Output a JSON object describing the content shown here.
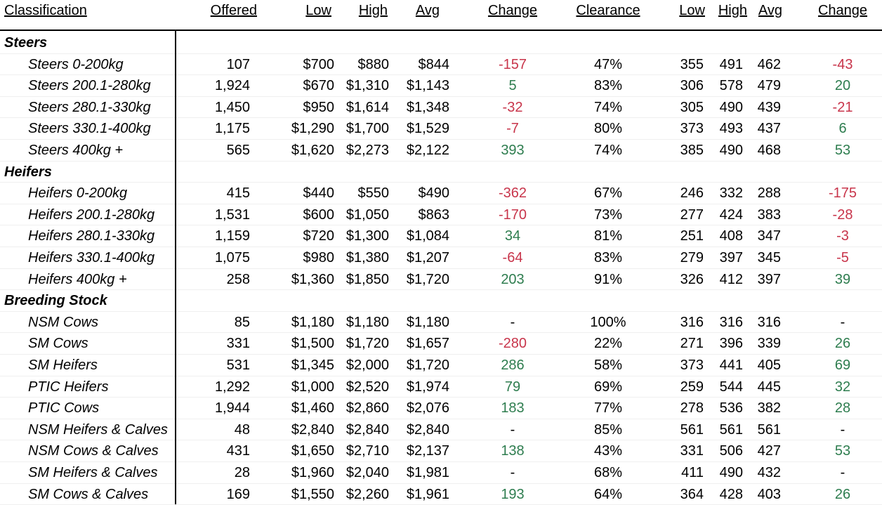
{
  "headers": {
    "classification": "Classification",
    "offered": "Offered",
    "low": "Low",
    "high": "High",
    "avg": "Avg",
    "change": "Change",
    "clearance": "Clearance",
    "low2": "Low",
    "high2": "High",
    "avg2": "Avg",
    "change2": "Change"
  },
  "colors": {
    "positive": "#2e7d4f",
    "negative": "#c8354b"
  },
  "rows": [
    {
      "type": "section",
      "label": "Steers"
    },
    {
      "type": "data",
      "label": "Steers 0-200kg",
      "offered": "107",
      "low": "$700",
      "high": "$880",
      "avg": "$844",
      "change": "-157",
      "clearance": "47%",
      "low2": "355",
      "high2": "491",
      "avg2": "462",
      "change2": "-43"
    },
    {
      "type": "data",
      "label": "Steers 200.1-280kg",
      "offered": "1,924",
      "low": "$670",
      "high": "$1,310",
      "avg": "$1,143",
      "change": "5",
      "clearance": "83%",
      "low2": "306",
      "high2": "578",
      "avg2": "479",
      "change2": "20"
    },
    {
      "type": "data",
      "label": "Steers 280.1-330kg",
      "offered": "1,450",
      "low": "$950",
      "high": "$1,614",
      "avg": "$1,348",
      "change": "-32",
      "clearance": "74%",
      "low2": "305",
      "high2": "490",
      "avg2": "439",
      "change2": "-21"
    },
    {
      "type": "data",
      "label": "Steers 330.1-400kg",
      "offered": "1,175",
      "low": "$1,290",
      "high": "$1,700",
      "avg": "$1,529",
      "change": "-7",
      "clearance": "80%",
      "low2": "373",
      "high2": "493",
      "avg2": "437",
      "change2": "6"
    },
    {
      "type": "data",
      "label": "Steers 400kg +",
      "offered": "565",
      "low": "$1,620",
      "high": "$2,273",
      "avg": "$2,122",
      "change": "393",
      "clearance": "74%",
      "low2": "385",
      "high2": "490",
      "avg2": "468",
      "change2": "53"
    },
    {
      "type": "section",
      "label": "Heifers"
    },
    {
      "type": "data",
      "label": "Heifers 0-200kg",
      "offered": "415",
      "low": "$440",
      "high": "$550",
      "avg": "$490",
      "change": "-362",
      "clearance": "67%",
      "low2": "246",
      "high2": "332",
      "avg2": "288",
      "change2": "-175"
    },
    {
      "type": "data",
      "label": "Heifers 200.1-280kg",
      "offered": "1,531",
      "low": "$600",
      "high": "$1,050",
      "avg": "$863",
      "change": "-170",
      "clearance": "73%",
      "low2": "277",
      "high2": "424",
      "avg2": "383",
      "change2": "-28"
    },
    {
      "type": "data",
      "label": "Heifers 280.1-330kg",
      "offered": "1,159",
      "low": "$720",
      "high": "$1,300",
      "avg": "$1,084",
      "change": "34",
      "clearance": "81%",
      "low2": "251",
      "high2": "408",
      "avg2": "347",
      "change2": "-3"
    },
    {
      "type": "data",
      "label": "Heifers 330.1-400kg",
      "offered": "1,075",
      "low": "$980",
      "high": "$1,380",
      "avg": "$1,207",
      "change": "-64",
      "clearance": "83%",
      "low2": "279",
      "high2": "397",
      "avg2": "345",
      "change2": "-5"
    },
    {
      "type": "data",
      "label": "Heifers 400kg +",
      "offered": "258",
      "low": "$1,360",
      "high": "$1,850",
      "avg": "$1,720",
      "change": "203",
      "clearance": "91%",
      "low2": "326",
      "high2": "412",
      "avg2": "397",
      "change2": "39"
    },
    {
      "type": "section",
      "label": "Breeding Stock"
    },
    {
      "type": "data",
      "label": "NSM Cows",
      "offered": "85",
      "low": "$1,180",
      "high": "$1,180",
      "avg": "$1,180",
      "change": "-",
      "clearance": "100%",
      "low2": "316",
      "high2": "316",
      "avg2": "316",
      "change2": "-"
    },
    {
      "type": "data",
      "label": "SM Cows",
      "offered": "331",
      "low": "$1,500",
      "high": "$1,720",
      "avg": "$1,657",
      "change": "-280",
      "clearance": "22%",
      "low2": "271",
      "high2": "396",
      "avg2": "339",
      "change2": "26"
    },
    {
      "type": "data",
      "label": "SM Heifers",
      "offered": "531",
      "low": "$1,345",
      "high": "$2,000",
      "avg": "$1,720",
      "change": "286",
      "clearance": "58%",
      "low2": "373",
      "high2": "441",
      "avg2": "405",
      "change2": "69"
    },
    {
      "type": "data",
      "label": "PTIC Heifers",
      "offered": "1,292",
      "low": "$1,000",
      "high": "$2,520",
      "avg": "$1,974",
      "change": "79",
      "clearance": "69%",
      "low2": "259",
      "high2": "544",
      "avg2": "445",
      "change2": "32"
    },
    {
      "type": "data",
      "label": "PTIC Cows",
      "offered": "1,944",
      "low": "$1,460",
      "high": "$2,860",
      "avg": "$2,076",
      "change": "183",
      "clearance": "77%",
      "low2": "278",
      "high2": "536",
      "avg2": "382",
      "change2": "28"
    },
    {
      "type": "data",
      "label": "NSM Heifers & Calves",
      "offered": "48",
      "low": "$2,840",
      "high": "$2,840",
      "avg": "$2,840",
      "change": "-",
      "clearance": "85%",
      "low2": "561",
      "high2": "561",
      "avg2": "561",
      "change2": "-"
    },
    {
      "type": "data",
      "label": "NSM Cows & Calves",
      "offered": "431",
      "low": "$1,650",
      "high": "$2,710",
      "avg": "$2,137",
      "change": "138",
      "clearance": "43%",
      "low2": "331",
      "high2": "506",
      "avg2": "427",
      "change2": "53"
    },
    {
      "type": "data",
      "label": "SM Heifers & Calves",
      "offered": "28",
      "low": "$1,960",
      "high": "$2,040",
      "avg": "$1,981",
      "change": "-",
      "clearance": "68%",
      "low2": "411",
      "high2": "490",
      "avg2": "432",
      "change2": "-"
    },
    {
      "type": "data",
      "label": "SM Cows & Calves",
      "offered": "169",
      "low": "$1,550",
      "high": "$2,260",
      "avg": "$1,961",
      "change": "193",
      "clearance": "64%",
      "low2": "364",
      "high2": "428",
      "avg2": "403",
      "change2": "26"
    }
  ]
}
